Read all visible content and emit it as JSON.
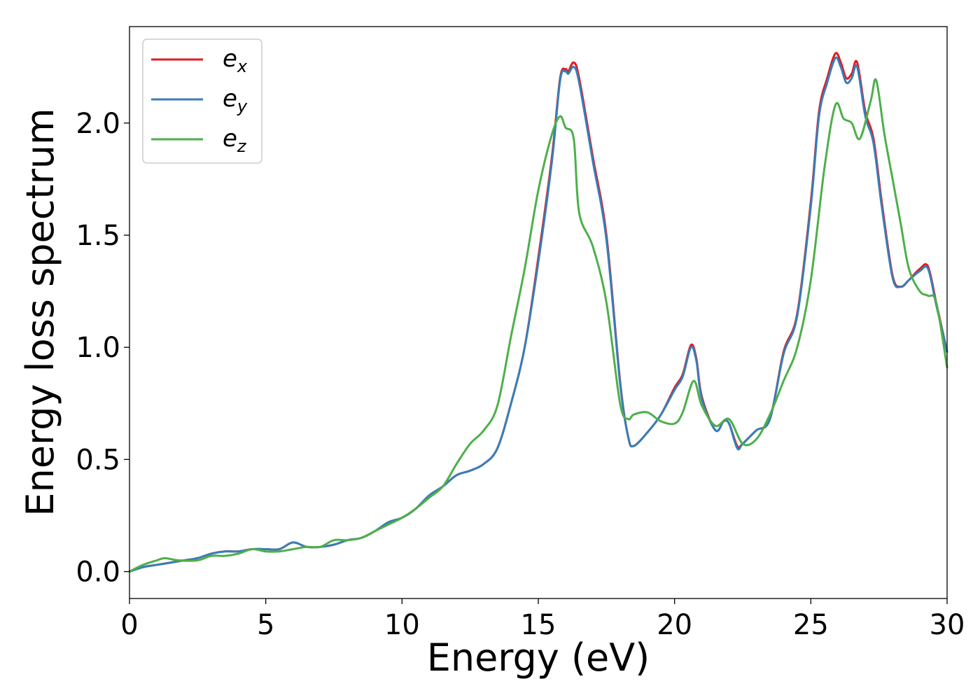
{
  "chart_data": {
    "type": "line",
    "title": "",
    "xlabel": "Energy (eV)",
    "ylabel": "Energy loss spectrum",
    "xlim": [
      0,
      30
    ],
    "ylim": [
      -0.12,
      2.43
    ],
    "xticks": [
      0,
      5,
      10,
      15,
      20,
      25,
      30
    ],
    "yticks": [
      0.0,
      0.5,
      1.0,
      1.5,
      2.0
    ],
    "xtick_labels": [
      "0",
      "5",
      "10",
      "15",
      "20",
      "25",
      "30"
    ],
    "ytick_labels": [
      "0.0",
      "0.5",
      "1.0",
      "1.5",
      "2.0"
    ],
    "grid": false,
    "legend_position": "top-left",
    "series": [
      {
        "name": "e_x",
        "legend_base": "e",
        "legend_sub": "x",
        "color": "#e41a1c",
        "x": [
          0,
          0.5,
          1,
          1.5,
          2,
          2.5,
          3,
          3.5,
          4,
          4.5,
          5,
          5.5,
          6,
          6.5,
          7,
          7.5,
          8,
          8.5,
          9,
          9.5,
          10,
          10.5,
          11,
          11.5,
          12,
          12.5,
          13,
          13.5,
          14,
          14.5,
          15,
          15.5,
          15.8,
          16,
          16.1,
          16.3,
          16.5,
          17,
          17.5,
          18,
          18.3,
          18.5,
          19,
          19.5,
          20,
          20.3,
          20.6,
          20.8,
          21,
          21.5,
          21.8,
          22,
          22.3,
          22.5,
          23,
          23.5,
          24,
          24.5,
          25,
          25.3,
          25.6,
          25.9,
          26.1,
          26.3,
          26.5,
          26.7,
          27,
          27.3,
          27.6,
          28,
          28.3,
          28.6,
          29,
          29.3,
          29.6,
          30
        ],
        "y": [
          0.0,
          0.02,
          0.03,
          0.04,
          0.05,
          0.06,
          0.08,
          0.09,
          0.09,
          0.1,
          0.1,
          0.1,
          0.13,
          0.11,
          0.11,
          0.12,
          0.14,
          0.15,
          0.18,
          0.22,
          0.24,
          0.28,
          0.34,
          0.38,
          0.43,
          0.45,
          0.48,
          0.55,
          0.75,
          1.0,
          1.4,
          1.85,
          2.2,
          2.24,
          2.23,
          2.27,
          2.2,
          1.85,
          1.5,
          0.85,
          0.6,
          0.56,
          0.62,
          0.7,
          0.82,
          0.88,
          1.01,
          0.95,
          0.78,
          0.63,
          0.67,
          0.66,
          0.56,
          0.57,
          0.63,
          0.68,
          0.98,
          1.15,
          1.65,
          2.05,
          2.2,
          2.31,
          2.27,
          2.2,
          2.22,
          2.27,
          2.05,
          1.93,
          1.65,
          1.32,
          1.27,
          1.3,
          1.35,
          1.36,
          1.2,
          0.98
        ]
      },
      {
        "name": "e_y",
        "legend_base": "e",
        "legend_sub": "y",
        "color": "#377eb8",
        "x": [
          0,
          0.5,
          1,
          1.5,
          2,
          2.5,
          3,
          3.5,
          4,
          4.5,
          5,
          5.5,
          6,
          6.5,
          7,
          7.5,
          8,
          8.5,
          9,
          9.5,
          10,
          10.5,
          11,
          11.5,
          12,
          12.5,
          13,
          13.5,
          14,
          14.5,
          15,
          15.5,
          15.8,
          16,
          16.1,
          16.3,
          16.5,
          17,
          17.5,
          18,
          18.3,
          18.5,
          19,
          19.5,
          20,
          20.3,
          20.6,
          20.8,
          21,
          21.5,
          21.8,
          22,
          22.3,
          22.5,
          23,
          23.5,
          24,
          24.5,
          25,
          25.3,
          25.6,
          25.9,
          26.1,
          26.3,
          26.5,
          26.7,
          27,
          27.3,
          27.6,
          28,
          28.3,
          28.6,
          29,
          29.3,
          29.6,
          30
        ],
        "y": [
          0.0,
          0.02,
          0.03,
          0.04,
          0.05,
          0.06,
          0.08,
          0.09,
          0.09,
          0.1,
          0.1,
          0.1,
          0.13,
          0.11,
          0.11,
          0.12,
          0.14,
          0.15,
          0.18,
          0.22,
          0.24,
          0.28,
          0.34,
          0.38,
          0.43,
          0.45,
          0.48,
          0.55,
          0.75,
          1.0,
          1.38,
          1.83,
          2.19,
          2.23,
          2.22,
          2.25,
          2.18,
          1.83,
          1.48,
          0.84,
          0.6,
          0.56,
          0.62,
          0.7,
          0.81,
          0.87,
          1.0,
          0.94,
          0.77,
          0.63,
          0.67,
          0.66,
          0.55,
          0.57,
          0.63,
          0.68,
          0.97,
          1.14,
          1.63,
          2.03,
          2.18,
          2.29,
          2.25,
          2.18,
          2.2,
          2.25,
          2.03,
          1.91,
          1.63,
          1.31,
          1.27,
          1.3,
          1.34,
          1.35,
          1.19,
          0.98
        ]
      },
      {
        "name": "e_z",
        "legend_base": "e",
        "legend_sub": "z",
        "color": "#4daf4a",
        "x": [
          0,
          0.5,
          1,
          1.3,
          1.8,
          2.5,
          3,
          3.5,
          4,
          4.5,
          5,
          5.5,
          6,
          6.5,
          7,
          7.5,
          8,
          8.5,
          9,
          9.5,
          10,
          10.5,
          11,
          11.5,
          12,
          12.5,
          13,
          13.5,
          14,
          14.5,
          15,
          15.5,
          15.8,
          16,
          16.3,
          16.5,
          17,
          17.5,
          18,
          18.3,
          18.5,
          19,
          19.5,
          20,
          20.3,
          20.7,
          21,
          21.5,
          22,
          22.5,
          23,
          23.5,
          24,
          24.5,
          25,
          25.5,
          25.9,
          26.2,
          26.5,
          26.8,
          27.2,
          27.4,
          27.7,
          28,
          28.3,
          28.6,
          29,
          29.3,
          29.6,
          30
        ],
        "y": [
          0.0,
          0.03,
          0.05,
          0.06,
          0.05,
          0.05,
          0.07,
          0.07,
          0.08,
          0.1,
          0.09,
          0.09,
          0.1,
          0.11,
          0.11,
          0.14,
          0.14,
          0.15,
          0.18,
          0.21,
          0.24,
          0.28,
          0.33,
          0.38,
          0.48,
          0.57,
          0.63,
          0.74,
          1.05,
          1.35,
          1.7,
          1.95,
          2.03,
          1.98,
          1.93,
          1.6,
          1.45,
          1.2,
          0.75,
          0.68,
          0.7,
          0.71,
          0.67,
          0.66,
          0.71,
          0.85,
          0.74,
          0.65,
          0.68,
          0.57,
          0.59,
          0.7,
          0.85,
          1.0,
          1.3,
          1.8,
          2.08,
          2.02,
          2.0,
          1.93,
          2.1,
          2.19,
          1.95,
          1.75,
          1.55,
          1.35,
          1.25,
          1.23,
          1.2,
          0.91
        ]
      }
    ]
  }
}
